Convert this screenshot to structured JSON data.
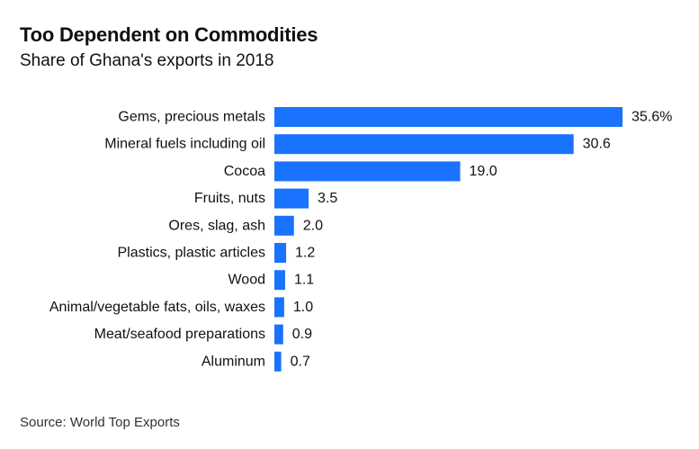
{
  "title": "Too Dependent on Commodities",
  "subtitle": "Share of Ghana's exports in 2018",
  "source": "Source: World Top Exports",
  "colors": {
    "bar": "#1a73ff",
    "text": "#111111",
    "background": "#ffffff"
  },
  "chart_data": {
    "type": "bar",
    "orientation": "horizontal",
    "title": "Too Dependent on Commodities",
    "subtitle": "Share of Ghana's exports in 2018",
    "xlabel": "",
    "ylabel": "",
    "xlim": [
      0,
      35.6
    ],
    "grid": false,
    "categories": [
      "Gems, precious metals",
      "Mineral fuels including oil",
      "Cocoa",
      "Fruits, nuts",
      "Ores, slag, ash",
      "Plastics, plastic articles",
      "Wood",
      "Animal/vegetable fats, oils, waxes",
      "Meat/seafood preparations",
      "Aluminum"
    ],
    "values": [
      35.6,
      30.6,
      19.0,
      3.5,
      2.0,
      1.2,
      1.1,
      1.0,
      0.9,
      0.7
    ],
    "value_labels": [
      "35.6%",
      "30.6",
      "19.0",
      "3.5",
      "2.0",
      "1.2",
      "1.1",
      "1.0",
      "0.9",
      "0.7"
    ]
  }
}
